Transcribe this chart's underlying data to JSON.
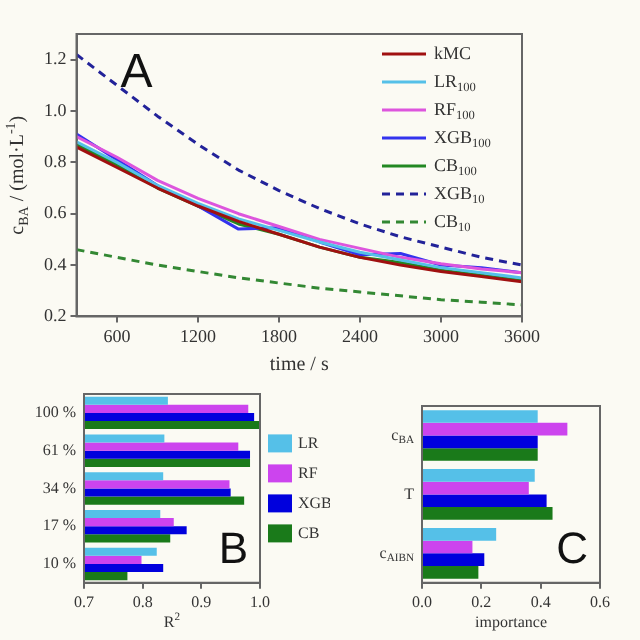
{
  "chart_data": [
    {
      "type": "line",
      "xlabel": "time / s",
      "ylabel": "c$_{BA}$ / (mol·L$^{-1}$)",
      "x": [
        300,
        600,
        900,
        1200,
        1500,
        1800,
        2100,
        2400,
        2700,
        3000,
        3300,
        3600
      ],
      "xlim": [
        300,
        3600
      ],
      "xticks": [
        600,
        1200,
        1800,
        2400,
        3000,
        3600
      ],
      "ylim": [
        0.2,
        1.3
      ],
      "yticks": [
        0.2,
        0.4,
        0.6,
        0.8,
        {
          "value": 1,
          "label": "1.0"
        },
        1.2
      ],
      "legend": "top right",
      "annotations": [
        "A"
      ],
      "series": [
        {
          "name": "kMC",
          "color": "#a01010",
          "values": [
            0.86,
            0.78,
            0.7,
            0.63,
            0.57,
            0.52,
            0.47,
            0.43,
            0.4,
            0.375,
            0.355,
            0.335
          ]
        },
        {
          "name": "LR$_{100}$",
          "color": "#55c0e8",
          "values": [
            0.88,
            0.8,
            0.71,
            0.64,
            0.58,
            0.535,
            0.49,
            0.45,
            0.42,
            0.39,
            0.37,
            0.35
          ]
        },
        {
          "name": "RF$_{100}$",
          "color": "#dd55dd",
          "values": [
            0.9,
            0.82,
            0.73,
            0.66,
            0.6,
            0.55,
            0.5,
            0.465,
            0.43,
            0.405,
            0.385,
            0.37
          ]
        },
        {
          "name": "XGB$_{100}$",
          "color": "#3333ee",
          "values": [
            0.91,
            0.81,
            0.71,
            0.63,
            0.54,
            0.545,
            0.49,
            0.44,
            0.445,
            0.4,
            0.39,
            0.37
          ]
        },
        {
          "name": "CB$_{100}$",
          "color": "#228822",
          "values": [
            0.87,
            0.79,
            0.7,
            0.63,
            0.56,
            0.52,
            0.47,
            0.43,
            0.41,
            0.38,
            0.36,
            0.34
          ]
        },
        {
          "name": "XGB$_{10}$",
          "color": "#222299",
          "line_style": "dashed",
          "values": [
            1.22,
            1.1,
            0.98,
            0.87,
            0.77,
            0.69,
            0.62,
            0.56,
            0.51,
            0.47,
            0.43,
            0.4
          ]
        },
        {
          "name": "CB$_{10}$",
          "color": "#338833",
          "line_style": "dashed",
          "values": [
            0.46,
            0.43,
            0.4,
            0.375,
            0.35,
            0.33,
            0.31,
            0.295,
            0.28,
            0.265,
            0.255,
            0.245
          ]
        }
      ]
    },
    {
      "type": "bar",
      "orientation": "horizontal",
      "categories": [
        "100 %",
        "61 %",
        "34 %",
        "17 %",
        "10 %"
      ],
      "xlabel": "R$^{2}$",
      "xlim": [
        0.7,
        1.0
      ],
      "xticks": [
        0.7,
        0.8,
        0.9,
        {
          "value": 1,
          "label": "1.0"
        }
      ],
      "legend": "right",
      "annotations": [
        "B"
      ],
      "series": [
        {
          "name": "LR",
          "color": "#55c0e8",
          "values": [
            0.843,
            0.837,
            0.835,
            0.83,
            0.824
          ]
        },
        {
          "name": "RF",
          "color": "#cc44ee",
          "values": [
            0.98,
            0.963,
            0.948,
            0.853,
            0.798
          ]
        },
        {
          "name": "XGB",
          "color": "#0000dd",
          "values": [
            0.99,
            0.983,
            0.95,
            0.875,
            0.835
          ]
        },
        {
          "name": "CB",
          "color": "#1a7a1a",
          "values": [
            1.0,
            0.983,
            0.973,
            0.847,
            0.774
          ]
        }
      ]
    },
    {
      "type": "bar",
      "orientation": "horizontal",
      "categories": [
        "c$_{BA}$",
        "T",
        "c$_{AIBN}$"
      ],
      "xlabel": "importance",
      "xlim": [
        0,
        0.6
      ],
      "xticks": [
        {
          "value": 0,
          "label": "0.0"
        },
        0.2,
        0.4,
        0.6
      ],
      "annotations": [
        "C"
      ],
      "series": [
        {
          "color": "#55c0e8",
          "values": [
            0.39,
            0.38,
            0.25
          ]
        },
        {
          "color": "#cc44ee",
          "values": [
            0.49,
            0.36,
            0.17
          ]
        },
        {
          "color": "#0000dd",
          "values": [
            0.39,
            0.42,
            0.21
          ]
        },
        {
          "color": "#1a7a1a",
          "values": [
            0.39,
            0.44,
            0.19
          ]
        }
      ]
    }
  ]
}
